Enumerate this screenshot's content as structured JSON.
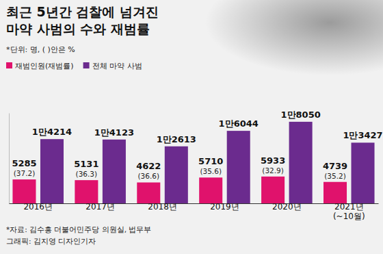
{
  "chart_data": {
    "type": "bar",
    "title": "최근 5년간 검찰에 넘겨진\n마약 사범의 수와 재범률",
    "subtitle": "*단위: 명, ( )안은 %",
    "categories": [
      "2016년",
      "2017년",
      "2018년",
      "2019년",
      "2020년",
      "2021년\n(~10월)"
    ],
    "series": [
      {
        "name": "재범인원(재범률)",
        "color": "#e0126c",
        "values": [
          5285,
          5131,
          4622,
          5710,
          5933,
          4739
        ],
        "rates": [
          37.2,
          36.3,
          36.6,
          35.6,
          32.9,
          35.2
        ],
        "rate_labels": [
          "(37.2)",
          "(36.3)",
          "(36.6)",
          "(35.6)",
          "(32.9)",
          "(35.2)"
        ]
      },
      {
        "name": "전체 마약 사범",
        "color": "#6b2b8e",
        "values": [
          14214,
          14123,
          12613,
          16044,
          18050,
          13427
        ],
        "value_labels": [
          "1만4214",
          "1만4123",
          "1만2613",
          "1만6044",
          "1만8050",
          "1만3427"
        ]
      }
    ],
    "ylim": [
      0,
      20000
    ],
    "yticks": [],
    "tick_labels": "x",
    "data_labels": true,
    "legend": "top left",
    "source": "*자료: 김수흥 더불어민주당 의원실, 법무부",
    "credit": "그래픽: 김지영 디자인기자"
  }
}
